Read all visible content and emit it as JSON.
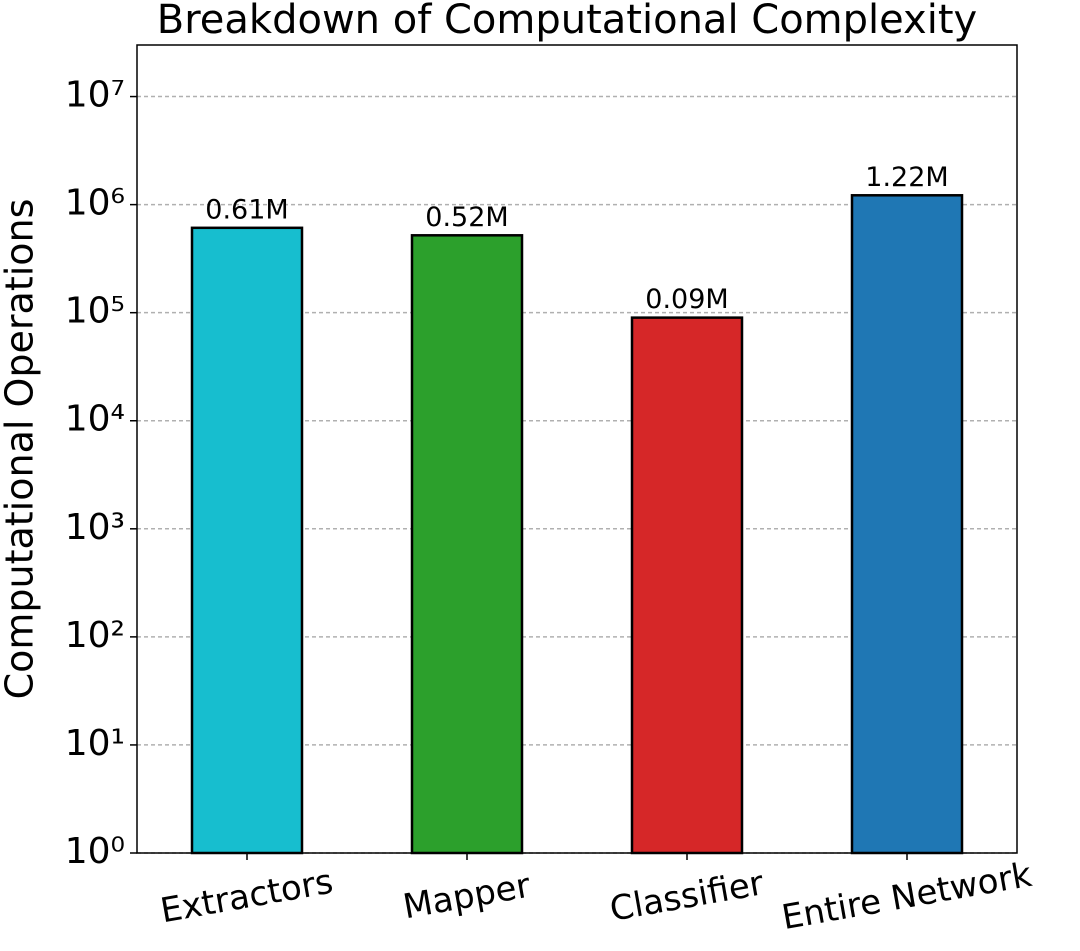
{
  "chart_data": {
    "type": "bar",
    "title": "Breakdown of Computational Complexity",
    "y_label": "Computational Operations",
    "categories": [
      "Extractors",
      "Mapper",
      "Classifier",
      "Entire Network"
    ],
    "values": [
      610000,
      520000,
      90000,
      1220000
    ],
    "value_labels": [
      "0.61M",
      "0.52M",
      "0.09M",
      "1.22M"
    ],
    "colors": [
      "#17becf",
      "#2ca02c",
      "#d62728",
      "#1f77b4"
    ],
    "log_scale": true,
    "ylim": [
      1,
      30000000
    ],
    "yticks": [
      {
        "value": 1,
        "label": "10⁰"
      },
      {
        "value": 10,
        "label": "10¹"
      },
      {
        "value": 100,
        "label": "10²"
      },
      {
        "value": 1000,
        "label": "10³"
      },
      {
        "value": 10000,
        "label": "10⁴"
      },
      {
        "value": 100000,
        "label": "10⁵"
      },
      {
        "value": 1000000,
        "label": "10⁶"
      },
      {
        "value": 10000000,
        "label": "10⁷"
      }
    ],
    "grid": true
  }
}
